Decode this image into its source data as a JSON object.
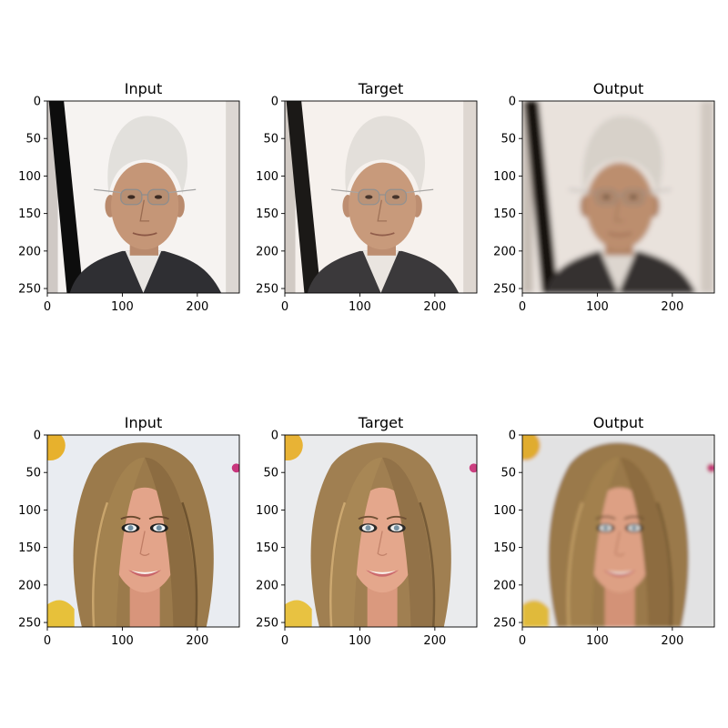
{
  "figure": {
    "columns": [
      "Input",
      "Target",
      "Output"
    ],
    "rows": [
      {
        "subject": "elderly man with white hair and glasses",
        "panels": [
          {
            "title": "Input",
            "image": "face-photo-man-input"
          },
          {
            "title": "Target",
            "image": "face-photo-man-target"
          },
          {
            "title": "Output",
            "image": "face-photo-man-output-blurred"
          }
        ]
      },
      {
        "subject": "woman with long light-brown hair",
        "panels": [
          {
            "title": "Input",
            "image": "face-photo-woman-input"
          },
          {
            "title": "Target",
            "image": "face-photo-woman-target"
          },
          {
            "title": "Output",
            "image": "face-photo-woman-output-smoothed"
          }
        ]
      }
    ],
    "x_ticks": [
      "0",
      "100",
      "200"
    ],
    "y_ticks": [
      "0",
      "50",
      "100",
      "150",
      "200",
      "250"
    ],
    "image_size": 256
  },
  "colors": {
    "background_white": "#ffffff",
    "man_skin": "#c59677",
    "man_hair": "#e2e0dc",
    "man_suit": "#2f2f33",
    "woman_hair": "#9b7a4b",
    "woman_skin": "#e3a48a",
    "photo_bg_light": "#e9ecf1"
  }
}
